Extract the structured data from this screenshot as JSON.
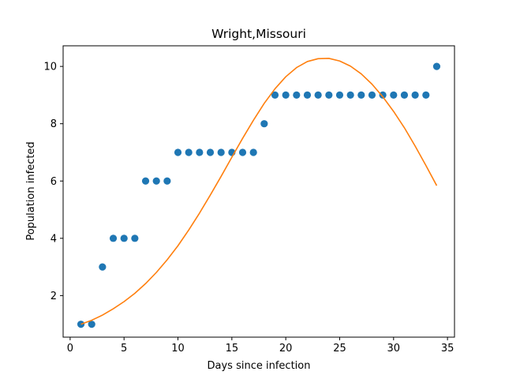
{
  "chart_data": {
    "type": "scatter",
    "title": "Wright,Missouri",
    "xlabel": "Days since infection",
    "ylabel": "Population infected",
    "xlim": [
      -0.65,
      35.65
    ],
    "ylim": [
      0.55,
      10.72
    ],
    "xticks": [
      0,
      5,
      10,
      15,
      20,
      25,
      30,
      35
    ],
    "yticks": [
      2,
      4,
      6,
      8,
      10
    ],
    "grid": false,
    "series": [
      {
        "kind": "scatter",
        "color": "#1f77b4",
        "x": [
          1,
          2,
          3,
          4,
          5,
          6,
          7,
          8,
          9,
          10,
          11,
          12,
          13,
          14,
          15,
          16,
          17,
          18,
          19,
          20,
          21,
          22,
          23,
          24,
          25,
          26,
          27,
          28,
          29,
          30,
          31,
          32,
          33,
          34
        ],
        "y": [
          1,
          1,
          3,
          4,
          4,
          4,
          6,
          6,
          6,
          7,
          7,
          7,
          7,
          7,
          7,
          7,
          7,
          8,
          9,
          9,
          9,
          9,
          9,
          9,
          9,
          9,
          9,
          9,
          9,
          9,
          9,
          9,
          9,
          10
        ]
      },
      {
        "kind": "line",
        "color": "#ff7f0e",
        "x": [
          1,
          2,
          3,
          4,
          5,
          6,
          7,
          8,
          9,
          10,
          11,
          12,
          13,
          14,
          15,
          16,
          17,
          18,
          19,
          20,
          21,
          22,
          23,
          24,
          25,
          26,
          27,
          28,
          29,
          30,
          31,
          32,
          33,
          34
        ],
        "y": [
          1.0,
          1.14,
          1.32,
          1.54,
          1.79,
          2.08,
          2.42,
          2.81,
          3.25,
          3.74,
          4.29,
          4.88,
          5.51,
          6.16,
          6.83,
          7.49,
          8.12,
          8.71,
          9.22,
          9.64,
          9.96,
          10.17,
          10.27,
          10.28,
          10.19,
          10.01,
          9.74,
          9.38,
          8.94,
          8.43,
          7.86,
          7.22,
          6.54,
          5.84
        ]
      }
    ]
  }
}
